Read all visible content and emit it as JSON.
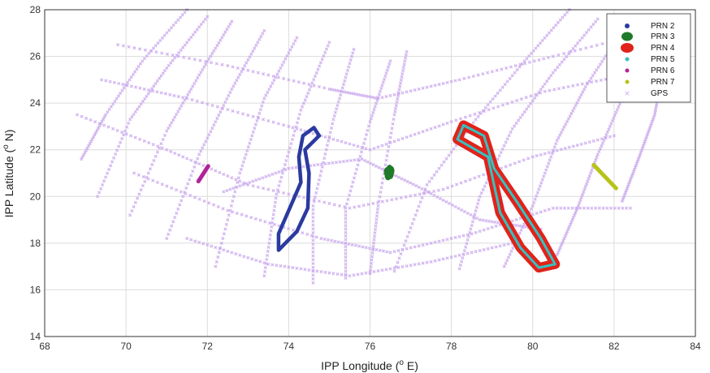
{
  "chart_data": {
    "type": "scatter",
    "title": "",
    "xlabel": "IPP Longitude (",
    "xlabel_sup": "o",
    "xlabel_tail": " E)",
    "ylabel": "IPP Latitude (",
    "ylabel_sup": "o",
    "ylabel_tail": " N)",
    "xlim": [
      68,
      84
    ],
    "ylim": [
      14,
      28
    ],
    "xticks": [
      "68",
      "70",
      "72",
      "74",
      "76",
      "78",
      "80",
      "82",
      "84"
    ],
    "yticks": [
      "14",
      "16",
      "18",
      "20",
      "22",
      "24",
      "26",
      "28"
    ],
    "grid": true,
    "legend_placement": "top-right",
    "series": [
      {
        "name": "PRN 2",
        "color": "#2b3aa0",
        "marker": "dot",
        "shape": "figure-eight",
        "points": [
          [
            74.62,
            22.95
          ],
          [
            74.75,
            22.6
          ],
          [
            74.4,
            22.0
          ],
          [
            74.5,
            21.0
          ],
          [
            74.47,
            19.5
          ],
          [
            74.2,
            18.5
          ],
          [
            73.75,
            17.7
          ],
          [
            73.75,
            18.4
          ],
          [
            74.0,
            19.4
          ],
          [
            74.3,
            20.6
          ],
          [
            74.25,
            21.7
          ],
          [
            74.35,
            22.6
          ],
          [
            74.62,
            22.95
          ]
        ]
      },
      {
        "name": "PRN 3",
        "color": "#1f7a2a",
        "marker": "large-dot",
        "shape": "cluster",
        "points": [
          [
            76.42,
            21.05
          ],
          [
            76.48,
            21.15
          ],
          [
            76.5,
            20.95
          ],
          [
            76.44,
            20.9
          ],
          [
            76.52,
            21.1
          ]
        ]
      },
      {
        "name": "PRN 4",
        "color": "#e0231b",
        "marker": "large-dot",
        "shape": "figure-eight",
        "points": [
          [
            78.3,
            23.05
          ],
          [
            78.8,
            22.6
          ],
          [
            79.05,
            21.2
          ],
          [
            79.6,
            19.8
          ],
          [
            80.2,
            18.2
          ],
          [
            80.55,
            17.1
          ],
          [
            80.15,
            16.95
          ],
          [
            79.7,
            17.8
          ],
          [
            79.2,
            19.3
          ],
          [
            79.0,
            20.9
          ],
          [
            78.9,
            21.7
          ],
          [
            78.55,
            22.05
          ],
          [
            78.15,
            22.45
          ],
          [
            78.3,
            23.05
          ]
        ]
      },
      {
        "name": "PRN 5",
        "color": "#35c2c2",
        "marker": "dot",
        "shape": "figure-eight",
        "points": [
          [
            78.3,
            23.05
          ],
          [
            78.8,
            22.6
          ],
          [
            79.05,
            21.2
          ],
          [
            79.6,
            19.8
          ],
          [
            80.2,
            18.2
          ],
          [
            80.55,
            17.1
          ],
          [
            80.15,
            16.95
          ],
          [
            79.7,
            17.8
          ],
          [
            79.2,
            19.3
          ],
          [
            79.0,
            20.9
          ],
          [
            78.9,
            21.7
          ],
          [
            78.55,
            22.05
          ],
          [
            78.15,
            22.45
          ],
          [
            78.3,
            23.05
          ]
        ]
      },
      {
        "name": "PRN 6",
        "color": "#b0249a",
        "marker": "dot",
        "shape": "segment",
        "points": [
          [
            71.78,
            20.65
          ],
          [
            72.02,
            21.3
          ]
        ]
      },
      {
        "name": "PRN 7",
        "color": "#b8c21a",
        "marker": "dot",
        "shape": "segment",
        "points": [
          [
            81.5,
            21.35
          ],
          [
            82.05,
            20.35
          ]
        ]
      },
      {
        "name": "GPS",
        "color": "#c9a8ec",
        "marker": "x",
        "shape": "tracks",
        "tracks": [
          [
            [
              71.5,
              28.0
            ],
            [
              70.4,
              25.8
            ],
            [
              69.5,
              23.5
            ],
            [
              68.9,
              21.6
            ]
          ],
          [
            [
              72.0,
              27.7
            ],
            [
              71.0,
              25.5
            ],
            [
              70.1,
              23.3
            ],
            [
              69.3,
              20.0
            ]
          ],
          [
            [
              72.6,
              27.5
            ],
            [
              71.8,
              25.2
            ],
            [
              71.0,
              22.8
            ],
            [
              70.1,
              19.2
            ]
          ],
          [
            [
              73.4,
              27.1
            ],
            [
              72.6,
              24.6
            ],
            [
              71.8,
              21.8
            ],
            [
              71.0,
              18.2
            ]
          ],
          [
            [
              74.2,
              26.8
            ],
            [
              73.4,
              24.2
            ],
            [
              72.8,
              21.0
            ],
            [
              72.2,
              17.0
            ]
          ],
          [
            [
              75.0,
              26.6
            ],
            [
              74.3,
              23.7
            ],
            [
              73.7,
              20.1
            ],
            [
              73.4,
              16.6
            ]
          ],
          [
            [
              75.6,
              26.3
            ],
            [
              75.1,
              23.3
            ],
            [
              74.6,
              19.6
            ],
            [
              74.6,
              16.3
            ]
          ],
          [
            [
              76.5,
              25.8
            ],
            [
              76.0,
              23.2
            ],
            [
              75.4,
              19.5
            ],
            [
              75.4,
              16.5
            ]
          ],
          [
            [
              76.9,
              26.2
            ],
            [
              76.6,
              23.5
            ],
            [
              76.2,
              19.6
            ],
            [
              76.0,
              16.7
            ]
          ],
          [
            [
              80.9,
              28.0
            ],
            [
              79.8,
              25.8
            ],
            [
              78.6,
              23.3
            ],
            [
              77.4,
              20.5
            ],
            [
              76.6,
              16.8
            ]
          ],
          [
            [
              81.6,
              27.6
            ],
            [
              80.5,
              25.3
            ],
            [
              79.5,
              22.9
            ],
            [
              78.7,
              20.0
            ],
            [
              78.2,
              16.9
            ]
          ],
          [
            [
              82.2,
              27.1
            ],
            [
              81.3,
              24.7
            ],
            [
              80.6,
              22.4
            ],
            [
              80.0,
              19.6
            ],
            [
              79.3,
              17.0
            ]
          ],
          [
            [
              82.8,
              26.6
            ],
            [
              82.2,
              24.2
            ],
            [
              81.6,
              21.8
            ],
            [
              81.1,
              19.5
            ],
            [
              80.6,
              17.5
            ]
          ],
          [
            [
              83.2,
              25.4
            ],
            [
              83.0,
              23.5
            ],
            [
              82.6,
              21.6
            ],
            [
              82.2,
              19.8
            ]
          ],
          [
            [
              69.4,
              25.0
            ],
            [
              71.5,
              24.2
            ],
            [
              74.0,
              23.0
            ],
            [
              76.0,
              22.0
            ],
            [
              78.0,
              23.2
            ],
            [
              80.3,
              24.5
            ],
            [
              82.6,
              25.3
            ]
          ],
          [
            [
              68.8,
              23.5
            ],
            [
              71.0,
              22.0
            ],
            [
              73.0,
              20.5
            ],
            [
              75.5,
              19.5
            ],
            [
              77.8,
              20.3
            ],
            [
              80.0,
              21.7
            ],
            [
              82.0,
              22.6
            ]
          ],
          [
            [
              69.8,
              26.5
            ],
            [
              72.5,
              25.6
            ],
            [
              75.0,
              24.6
            ],
            [
              76.2,
              24.2
            ],
            [
              78.2,
              25.0
            ],
            [
              80.5,
              26.0
            ],
            [
              83.2,
              27.2
            ]
          ],
          [
            [
              70.2,
              21.0
            ],
            [
              72.5,
              19.4
            ],
            [
              74.8,
              18.2
            ],
            [
              76.5,
              17.6
            ],
            [
              78.5,
              18.4
            ],
            [
              80.5,
              19.5
            ],
            [
              82.4,
              19.5
            ]
          ],
          [
            [
              71.5,
              18.2
            ],
            [
              73.5,
              17.1
            ],
            [
              75.5,
              16.6
            ],
            [
              77.5,
              17.2
            ],
            [
              79.5,
              18.0
            ]
          ],
          [
            [
              72.4,
              20.2
            ],
            [
              74.0,
              21.2
            ],
            [
              75.8,
              21.6
            ],
            [
              77.2,
              20.4
            ],
            [
              78.7,
              19.0
            ],
            [
              80.2,
              18.6
            ]
          ]
        ]
      }
    ]
  }
}
